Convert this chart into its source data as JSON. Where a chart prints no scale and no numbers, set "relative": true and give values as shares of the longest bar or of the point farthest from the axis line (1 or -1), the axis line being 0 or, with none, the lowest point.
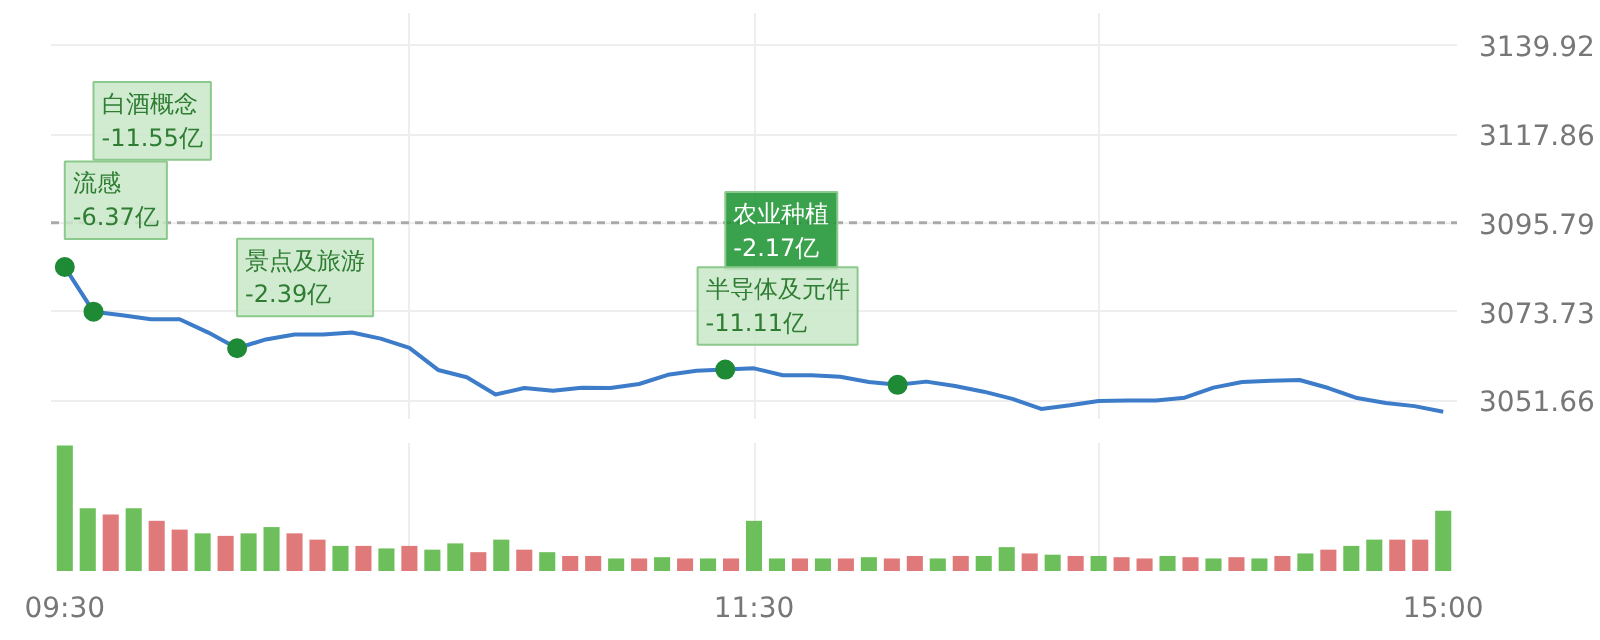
{
  "chart_data": [
    {
      "type": "line",
      "categories": [
        null,
        null,
        null,
        null,
        null,
        null,
        null,
        null,
        null,
        null,
        null,
        null,
        null,
        null,
        null,
        null,
        null,
        null,
        null,
        null,
        null,
        null,
        null,
        null,
        null,
        null,
        null,
        null,
        null,
        null,
        null,
        null,
        null,
        null,
        null,
        null,
        null,
        null,
        null,
        null,
        null,
        null,
        null,
        null,
        null,
        null,
        null,
        null,
        null
      ],
      "series": [
        {
          "color": "#3d7cc9",
          "values": [
            3084.8,
            3073.7,
            3072.8,
            3071.8,
            3071.8,
            3068.5,
            3064.6,
            3066.8,
            3068.0,
            3068.0,
            3068.5,
            3067.0,
            3064.7,
            3059.2,
            3057.4,
            3053.1,
            3054.7,
            3054.0,
            3054.8,
            3054.7,
            3055.7,
            3058.0,
            3059.0,
            3059.3,
            3059.6,
            3057.9,
            3057.9,
            3057.5,
            3056.2,
            3055.5,
            3056.3,
            3055.2,
            3053.8,
            3052.0,
            3049.5,
            3050.4,
            3051.5,
            3051.6,
            3051.6,
            3052.3,
            3054.8,
            3056.2,
            3056.5,
            3056.7,
            3054.7,
            3052.2,
            3051.0,
            3050.2,
            3048.8
          ]
        },
        {
          "type": "scatter",
          "marker": "circle",
          "color": "#1f8a35",
          "values": [
            3084.8,
            3073.7,
            null,
            null,
            null,
            null,
            3064.6,
            null,
            null,
            null,
            null,
            null,
            null,
            null,
            null,
            null,
            null,
            null,
            null,
            null,
            null,
            null,
            null,
            3059.3,
            null,
            null,
            null,
            null,
            null,
            3055.5,
            null,
            null,
            null,
            null,
            null,
            null,
            null,
            null,
            null,
            null,
            null,
            null,
            null,
            null,
            null,
            null,
            null,
            null,
            null
          ]
        }
      ],
      "ylim": [
        3047,
        3148
      ],
      "yticks": [
        3051.66,
        3073.73,
        3095.79,
        3117.86,
        3139.92
      ],
      "grid": true,
      "tick_labels": "y",
      "ref_lines": [
        {
          "axis": "y",
          "value": 3095.79,
          "color": "#aaaaaa",
          "line_style": "dashed"
        }
      ],
      "annotations": [
        "流感\n-6.37亿",
        "白酒概念\n-11.55亿",
        "景点及旅游\n-2.39亿",
        "农业种植\n-2.17亿",
        "半导体及元件\n-11.11亿"
      ]
    },
    {
      "type": "bar",
      "relative": true,
      "grid": "x",
      "categories": [
        "09:30",
        null,
        null,
        null,
        null,
        null,
        null,
        null,
        null,
        null,
        null,
        null,
        null,
        null,
        null,
        null,
        null,
        null,
        null,
        null,
        null,
        null,
        null,
        null,
        null,
        null,
        null,
        null,
        null,
        null,
        "11:30",
        null,
        null,
        null,
        null,
        null,
        null,
        null,
        null,
        null,
        null,
        null,
        null,
        null,
        null,
        null,
        null,
        null,
        null,
        null,
        null,
        null,
        null,
        null,
        null,
        null,
        null,
        null,
        null,
        null,
        "15:00"
      ],
      "values": [
        1.0,
        0.5,
        0.45,
        0.5,
        0.4,
        0.33,
        0.3,
        0.28,
        0.3,
        0.35,
        0.3,
        0.25,
        0.2,
        0.2,
        0.18,
        0.2,
        0.17,
        0.22,
        0.15,
        0.25,
        0.17,
        0.15,
        0.12,
        0.12,
        0.1,
        0.1,
        0.11,
        0.1,
        0.1,
        0.1,
        0.4,
        0.1,
        0.1,
        0.1,
        0.1,
        0.11,
        0.1,
        0.12,
        0.1,
        0.12,
        0.12,
        0.19,
        0.14,
        0.13,
        0.12,
        0.12,
        0.11,
        0.1,
        0.12,
        0.11,
        0.1,
        0.11,
        0.1,
        0.12,
        0.14,
        0.17,
        0.2,
        0.25,
        0.25,
        0.25,
        0.48
      ],
      "colors": [
        "#6cbf5a",
        "#6cbf5a",
        "#e07a7a",
        "#6cbf5a",
        "#e07a7a",
        "#e07a7a",
        "#6cbf5a",
        "#e07a7a",
        "#6cbf5a",
        "#6cbf5a",
        "#e07a7a",
        "#e07a7a",
        "#6cbf5a",
        "#e07a7a",
        "#6cbf5a",
        "#e07a7a",
        "#6cbf5a",
        "#6cbf5a",
        "#e07a7a",
        "#6cbf5a",
        "#e07a7a",
        "#6cbf5a",
        "#e07a7a",
        "#e07a7a",
        "#6cbf5a",
        "#e07a7a",
        "#6cbf5a",
        "#e07a7a",
        "#6cbf5a",
        "#e07a7a",
        "#6cbf5a",
        "#6cbf5a",
        "#e07a7a",
        "#6cbf5a",
        "#e07a7a",
        "#6cbf5a",
        "#e07a7a",
        "#e07a7a",
        "#6cbf5a",
        "#e07a7a",
        "#6cbf5a",
        "#6cbf5a",
        "#e07a7a",
        "#6cbf5a",
        "#e07a7a",
        "#6cbf5a",
        "#e07a7a",
        "#e07a7a",
        "#6cbf5a",
        "#e07a7a",
        "#6cbf5a",
        "#e07a7a",
        "#6cbf5a",
        "#e07a7a",
        "#6cbf5a",
        "#e07a7a",
        "#6cbf5a",
        "#6cbf5a",
        "#e07a7a",
        "#e07a7a",
        "#6cbf5a"
      ]
    }
  ]
}
